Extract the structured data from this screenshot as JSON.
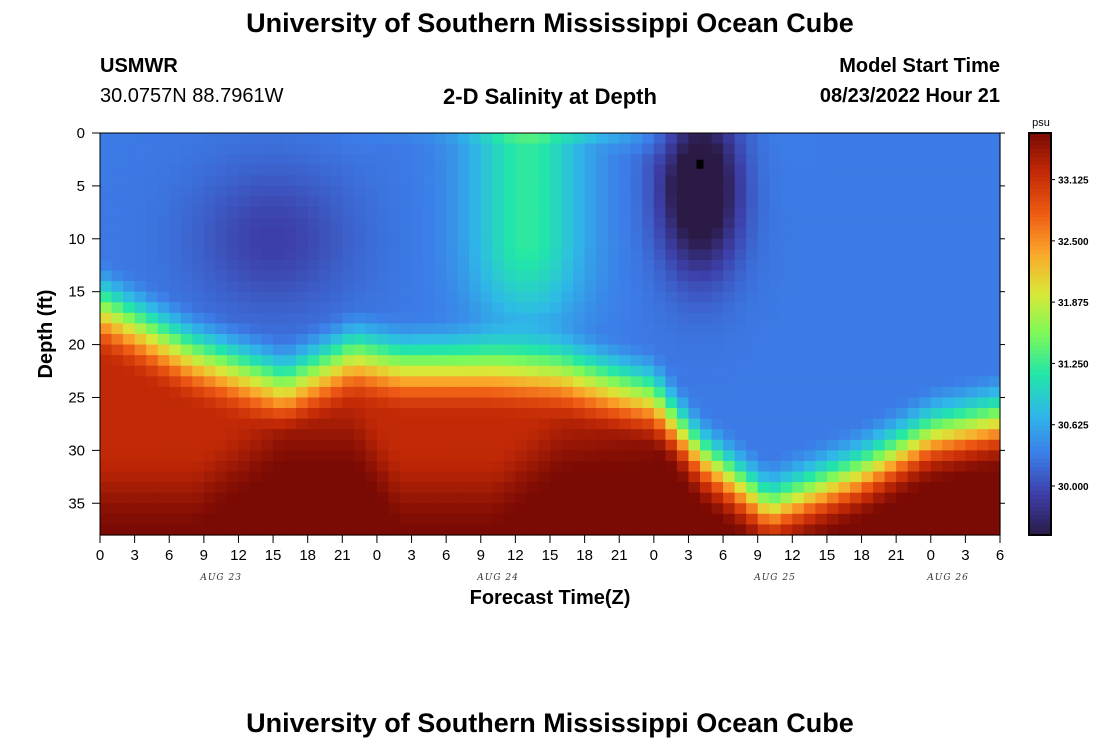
{
  "header": {
    "title": "University of Southern Mississippi Ocean Cube",
    "station": "USMWR",
    "coords": "30.0757N  88.7961W",
    "subtitle": "2-D Salinity at Depth",
    "start_label": "Model Start Time",
    "start_date": "08/23/2022 Hour 21"
  },
  "footer": {
    "title": "University of Southern Mississippi Ocean Cube"
  },
  "chart_data": {
    "type": "heatmap",
    "title": "2-D Salinity at Depth",
    "xlabel": "Forecast Time(Z)",
    "ylabel": "Depth (ft)",
    "x_hours_range": [
      0,
      78
    ],
    "y_depth_range": [
      0,
      38
    ],
    "x_ticks": [
      "0",
      "3",
      "6",
      "9",
      "12",
      "15",
      "18",
      "21",
      "0",
      "3",
      "6",
      "9",
      "12",
      "15",
      "18",
      "21",
      "0",
      "3",
      "6",
      "9",
      "12",
      "15",
      "18",
      "21",
      "0",
      "3",
      "6"
    ],
    "day_labels": [
      {
        "text": "AUG 23",
        "hour": 10.5
      },
      {
        "text": "AUG 24",
        "hour": 34.5
      },
      {
        "text": "AUG 25",
        "hour": 58.5
      },
      {
        "text": "AUG 26",
        "hour": 73.5
      }
    ],
    "y_ticks": [
      "0",
      "5",
      "10",
      "15",
      "20",
      "25",
      "30",
      "35"
    ],
    "y_tick_values": [
      0,
      5,
      10,
      15,
      20,
      25,
      30,
      35
    ],
    "colorbar": {
      "unit": "psu",
      "range": [
        29.5,
        33.6
      ],
      "ticks": [
        "33.125",
        "32.500",
        "31.875",
        "31.250",
        "30.625",
        "30.000"
      ],
      "tick_values": [
        33.125,
        32.5,
        31.875,
        31.25,
        30.625,
        30.0
      ],
      "colors": [
        "#2b1a45",
        "#3d3fa8",
        "#3c7de8",
        "#2fb8e8",
        "#22e6a8",
        "#7ef85a",
        "#d9e838",
        "#fba82a",
        "#ee5a14",
        "#c42a06",
        "#7a0a04"
      ]
    },
    "boundary_hours": [
      0,
      8,
      16,
      22,
      26,
      34,
      40,
      48,
      52,
      58,
      66,
      72,
      78
    ],
    "boundary_depth_interface": [
      13.5,
      18,
      21,
      18,
      19,
      19,
      19.5,
      22,
      27.5,
      32.5,
      29,
      25.5,
      24
    ],
    "boundary_depth_low": [
      6,
      9,
      9.5,
      3.5,
      1,
      1,
      1,
      3,
      9,
      13,
      11,
      10,
      9
    ],
    "boundary_depth_bottom": [
      38,
      38,
      32,
      32,
      38,
      38,
      33,
      32,
      30,
      38,
      36,
      32,
      32
    ],
    "features": [
      {
        "name": "low-salinity-core-1",
        "hour": 14,
        "depth": 10,
        "salinity": 29.9
      },
      {
        "name": "low-salinity-core-2",
        "hour": 52,
        "depth": 6,
        "salinity": 29.4
      },
      {
        "name": "mid-water-fresh-band",
        "hour": 38,
        "depth": 5,
        "salinity": 31.3
      },
      {
        "name": "deep-saline-core",
        "hour": 30,
        "depth": 36,
        "salinity": 33.5
      },
      {
        "name": "tiny-marker",
        "hour": 52,
        "depth": 3,
        "salinity": 29.4
      }
    ]
  }
}
